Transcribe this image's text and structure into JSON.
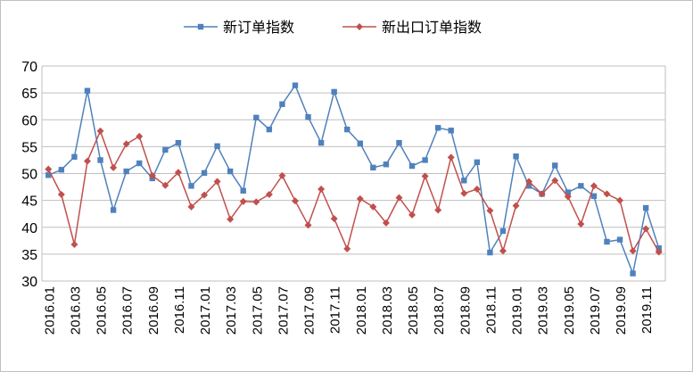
{
  "chart_data": {
    "type": "line",
    "title": "",
    "xlabel": "",
    "ylabel": "",
    "ylim": [
      30,
      70
    ],
    "yticks": [
      30,
      35,
      40,
      45,
      50,
      55,
      60,
      65,
      70
    ],
    "grid": true,
    "legend": "top-center",
    "categories": [
      "2016.01",
      "2016.02",
      "2016.03",
      "2016.04",
      "2016.05",
      "2016.06",
      "2016.07",
      "2016.08",
      "2016.09",
      "2016.10",
      "2016.11",
      "2016.12",
      "2017.01",
      "2017.02",
      "2017.03",
      "2017.04",
      "2017.05",
      "2017.06",
      "2017.07",
      "2017.08",
      "2017.09",
      "2017.10",
      "2017.11",
      "2017.12",
      "2018.01",
      "2018.02",
      "2018.03",
      "2018.04",
      "2018.05",
      "2018.06",
      "2018.07",
      "2018.08",
      "2018.09",
      "2018.10",
      "2018.11",
      "2018.12",
      "2019.01",
      "2019.02",
      "2019.03",
      "2019.04",
      "2019.05",
      "2019.06",
      "2019.07",
      "2019.08",
      "2019.09",
      "2019.10",
      "2019.11",
      "2019.12"
    ],
    "tick_labels": [
      "2016.01",
      "2016.03",
      "2016.05",
      "2016.07",
      "2016.09",
      "2016.11",
      "2017.01",
      "2017.03",
      "2017.05",
      "2017.07",
      "2017.09",
      "2017.11",
      "2018.01",
      "2018.03",
      "2018.05",
      "2018.07",
      "2018.09",
      "2018.11",
      "2019.01",
      "2019.03",
      "2019.05",
      "2019.07",
      "2019.09",
      "2019.11"
    ],
    "series": [
      {
        "name": "新订单指数",
        "color": "#4f81bd",
        "marker": "square",
        "values": [
          49.7,
          50.7,
          53.1,
          65.4,
          52.5,
          43.2,
          50.4,
          51.9,
          49.1,
          54.4,
          55.7,
          47.7,
          50.1,
          55.1,
          50.4,
          46.8,
          60.4,
          58.2,
          62.9,
          66.4,
          60.5,
          55.7,
          65.2,
          58.2,
          55.6,
          51.1,
          51.7,
          55.7,
          51.4,
          52.5,
          58.5,
          58.0,
          48.7,
          52.1,
          35.3,
          39.3,
          53.2,
          47.7,
          46.2,
          51.5,
          46.5,
          47.7,
          45.8,
          37.3,
          37.7,
          31.4,
          43.6,
          36.1
        ]
      },
      {
        "name": "新出口订单指数",
        "color": "#c0504d",
        "marker": "diamond",
        "values": [
          50.8,
          46.1,
          36.8,
          52.3,
          57.9,
          51.1,
          55.5,
          56.9,
          49.6,
          47.8,
          50.2,
          43.8,
          46.0,
          48.5,
          41.5,
          44.8,
          44.7,
          46.1,
          49.6,
          44.9,
          40.4,
          47.1,
          41.6,
          36.0,
          45.3,
          43.8,
          40.8,
          45.5,
          42.3,
          49.5,
          43.2,
          53.0,
          46.3,
          47.1,
          43.1,
          35.6,
          44.0,
          48.5,
          46.2,
          48.7,
          45.7,
          40.6,
          47.7,
          46.2,
          45.0,
          35.6,
          39.7,
          35.4
        ]
      }
    ]
  }
}
